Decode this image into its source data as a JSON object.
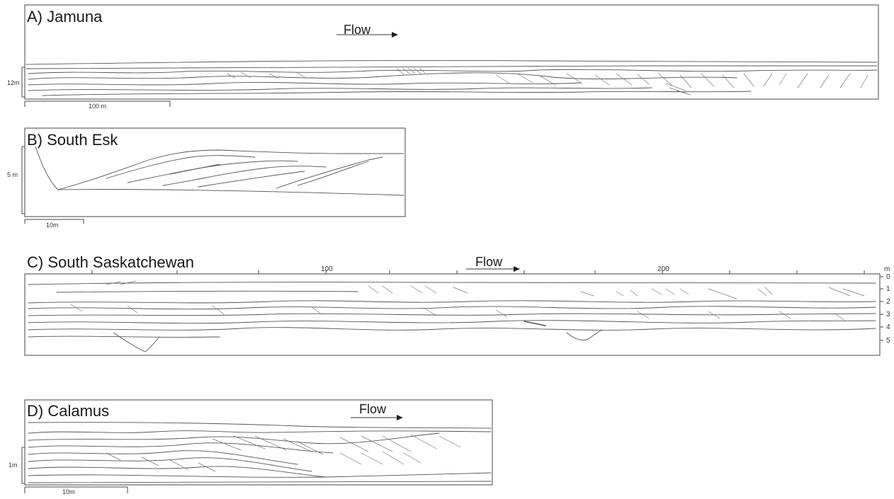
{
  "panels": {
    "a": {
      "title": "A) Jamuna",
      "flow": "Flow",
      "vscale": "12m",
      "hscale": "100 m"
    },
    "b": {
      "title": "B) South Esk",
      "vscale": "5 m",
      "hscale": "10m"
    },
    "c": {
      "title": "C) South Saskatchewan",
      "flow": "Flow",
      "top_ticks": [
        "100",
        "200"
      ],
      "unit": "m",
      "depth_ticks": [
        "0",
        "1",
        "2",
        "3",
        "4",
        "5"
      ]
    },
    "d": {
      "title": "D) Calamus",
      "flow": "Flow",
      "vscale": "1m",
      "hscale": "10m"
    }
  }
}
